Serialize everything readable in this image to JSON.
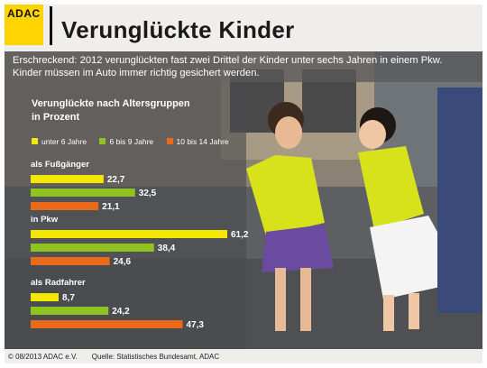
{
  "header": {
    "logo_text": "ADAC",
    "title": "Verunglückte Kinder"
  },
  "subtitle": "Erschreckend: 2012 verunglückten fast zwei Drittel der Kinder unter sechs Jahren in einem Pkw. Kinder müssen im Auto immer richtig gesichert werden.",
  "footer": {
    "copyright": "© 08/2013 ADAC e.V.",
    "source": "Quelle:  Statistisches Bundesamt, ADAC"
  },
  "colors": {
    "brand_yellow": "#ffd400",
    "series_yellow": "#f5e800",
    "series_green": "#8fc31f",
    "series_orange": "#ea6a1a"
  },
  "chart_data": {
    "type": "bar",
    "orientation": "horizontal",
    "title": "Verunglückte nach Altersgruppen in Prozent",
    "title_lines": [
      "Verunglückte nach Altersgruppen",
      "in Prozent"
    ],
    "categories": [
      "als Fußgänger",
      "in Pkw",
      "als Radfahrer"
    ],
    "series": [
      {
        "name": "unter 6 Jahre",
        "color": "#f5e800",
        "values": [
          22.7,
          61.2,
          8.7
        ]
      },
      {
        "name": "6 bis 9 Jahre",
        "color": "#8fc31f",
        "values": [
          32.5,
          38.4,
          24.2
        ]
      },
      {
        "name": "10 bis 14 Jahre",
        "color": "#ea6a1a",
        "values": [
          21.1,
          24.6,
          47.3
        ]
      }
    ],
    "value_labels": [
      [
        "22,7",
        "32,5",
        "21,1"
      ],
      [
        "61,2",
        "38,4",
        "24,6"
      ],
      [
        "8,7",
        "24,2",
        "47,3"
      ]
    ],
    "xlim": [
      0,
      61.2
    ],
    "grid": false,
    "legend_position": "top"
  }
}
